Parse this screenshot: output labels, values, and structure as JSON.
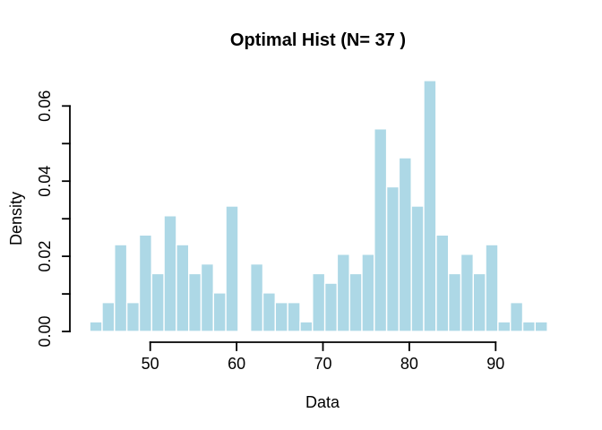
{
  "chart_data": {
    "type": "bar",
    "subtype": "histogram",
    "title": "Optimal Hist (N= 37 )",
    "xlabel": "Data",
    "ylabel": "Density",
    "n_bins": 37,
    "bins": {
      "start": 43,
      "end": 96,
      "width": 1.4324
    },
    "densities": [
      0.00257,
      0.0077,
      0.02311,
      0.0077,
      0.02567,
      0.01541,
      0.03081,
      0.02311,
      0.01541,
      0.01797,
      0.01027,
      0.03338,
      0,
      0.01797,
      0.01027,
      0.0077,
      0.0077,
      0.00257,
      0.01541,
      0.01284,
      0.02054,
      0.01541,
      0.02054,
      0.05392,
      0.03851,
      0.04622,
      0.03338,
      0.06676,
      0.02567,
      0.01541,
      0.02054,
      0.01541,
      0.02311,
      0.00257,
      0.0077,
      0.00257,
      0.00257
    ],
    "x_ticks": [
      50,
      60,
      70,
      80,
      90
    ],
    "y_ticks_minor_step": 0.01,
    "y_ticks_labeled": [
      0.0,
      0.02,
      0.04,
      0.06
    ],
    "y_tick_label_format": [
      "0.00",
      "0.02",
      "0.04",
      "0.06"
    ],
    "ylim": [
      0,
      0.0693
    ],
    "grid": "off",
    "legend": "none",
    "colors": {
      "bar_fill": "#ADD8E6",
      "bar_border": "#FFFFFF",
      "axis": "#000000",
      "text": "#000000",
      "background": "#FFFFFF"
    }
  }
}
